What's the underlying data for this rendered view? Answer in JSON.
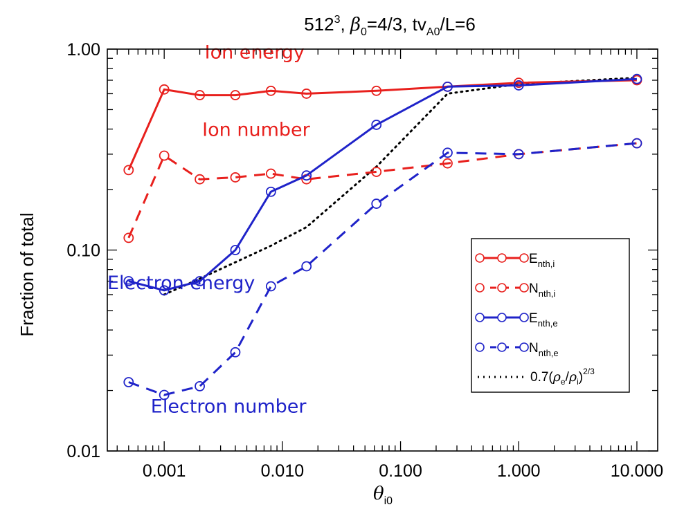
{
  "chart_data": {
    "type": "line",
    "title": {
      "base": "512",
      "sup": "3",
      "beta_sym": "β",
      "beta_sub": "0",
      "beta_rest": "=4/3, tv",
      "tv_sub": "A0",
      "tail": "/L=6"
    },
    "xlabel": {
      "sym": "θ",
      "sub": "i0"
    },
    "ylabel": "Fraction of total",
    "xscale": "log",
    "yscale": "log",
    "xlim": [
      0.00033,
      15
    ],
    "ylim": [
      0.01,
      1.0
    ],
    "xticks": [
      {
        "value": 0.001,
        "label": "0.001"
      },
      {
        "value": 0.01,
        "label": "0.010"
      },
      {
        "value": 0.1,
        "label": "0.100"
      },
      {
        "value": 1,
        "label": "1.000"
      },
      {
        "value": 10,
        "label": "10.000"
      }
    ],
    "yticks": [
      {
        "value": 1.0,
        "label": "1.00"
      },
      {
        "value": 0.1,
        "label": "0.10"
      },
      {
        "value": 0.01,
        "label": "0.01"
      }
    ],
    "x": [
      0.0005,
      0.001,
      0.002,
      0.004,
      0.008,
      0.016,
      0.0625,
      0.25,
      1,
      10
    ],
    "series": [
      {
        "key": "ei",
        "legend": {
          "main": "E",
          "sub": "nth,i"
        },
        "color": "#e8201d",
        "dash": "solid",
        "values": [
          0.25,
          0.63,
          0.59,
          0.59,
          0.62,
          0.6,
          0.62,
          0.65,
          0.68,
          0.7
        ]
      },
      {
        "key": "ni",
        "legend": {
          "main": "N",
          "sub": "nth,i"
        },
        "color": "#e8201d",
        "dash": "dashed",
        "values": [
          0.115,
          0.295,
          0.225,
          0.23,
          0.24,
          0.225,
          0.245,
          0.27,
          0.3,
          0.34
        ]
      },
      {
        "key": "ee",
        "legend": {
          "main": "E",
          "sub": "nth,e"
        },
        "color": "#1f23c9",
        "dash": "solid",
        "values": [
          0.07,
          0.063,
          0.07,
          0.1,
          0.195,
          0.235,
          0.42,
          0.65,
          0.66,
          0.71
        ]
      },
      {
        "key": "ne",
        "legend": {
          "main": "N",
          "sub": "nth,e"
        },
        "color": "#1f23c9",
        "dash": "dashed",
        "values": [
          0.022,
          0.019,
          0.021,
          0.031,
          0.066,
          0.083,
          0.17,
          0.305,
          0.3,
          0.34
        ]
      }
    ],
    "reference": {
      "legend": {
        "pre": "0.7(",
        "rho": "ρ",
        "sub_e": "e",
        "slash": "/",
        "sub_i": "i",
        "close": ")",
        "sup": "2/3"
      },
      "color": "#000000",
      "dash": "dotted",
      "x": [
        0.001,
        0.002,
        0.004,
        0.008,
        0.016,
        0.0625,
        0.25,
        1,
        10
      ],
      "values": [
        0.06,
        0.072,
        0.087,
        0.105,
        0.13,
        0.26,
        0.6,
        0.67,
        0.72
      ]
    },
    "annotations": [
      {
        "text": "Ion energy",
        "color": "#e8201d",
        "x": 0.0022,
        "y": 0.9
      },
      {
        "text": "Ion number",
        "color": "#e8201d",
        "x": 0.0021,
        "y": 0.37
      },
      {
        "text": "Electron energy",
        "color": "#1f23c9",
        "x": 0.00033,
        "y": 0.064
      },
      {
        "text": "Electron number",
        "color": "#1f23c9",
        "x": 0.00077,
        "y": 0.0155
      }
    ],
    "legend_position": "lower-right"
  }
}
